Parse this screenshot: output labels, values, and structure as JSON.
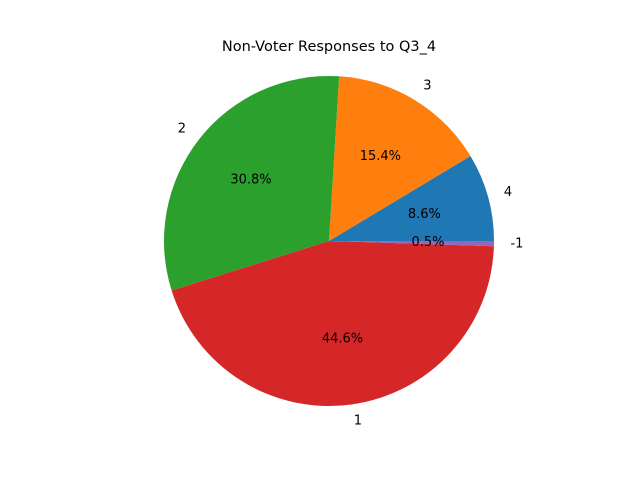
{
  "chart_data": {
    "type": "pie",
    "title": "Non-Voter Responses to Q3_4",
    "slices": [
      {
        "label": "4",
        "value": 8.6,
        "pct_label": "8.6%",
        "color": "#1f77b4"
      },
      {
        "label": "3",
        "value": 15.4,
        "pct_label": "15.4%",
        "color": "#ff7f0e"
      },
      {
        "label": "2",
        "value": 30.8,
        "pct_label": "30.8%",
        "color": "#2ca02c"
      },
      {
        "label": "1",
        "value": 44.6,
        "pct_label": "44.6%",
        "color": "#d62728"
      },
      {
        "label": "-1",
        "value": 0.5,
        "pct_label": "0.5%",
        "color": "#9467bd"
      }
    ],
    "start_angle_deg": 0,
    "direction": "counterclockwise"
  }
}
